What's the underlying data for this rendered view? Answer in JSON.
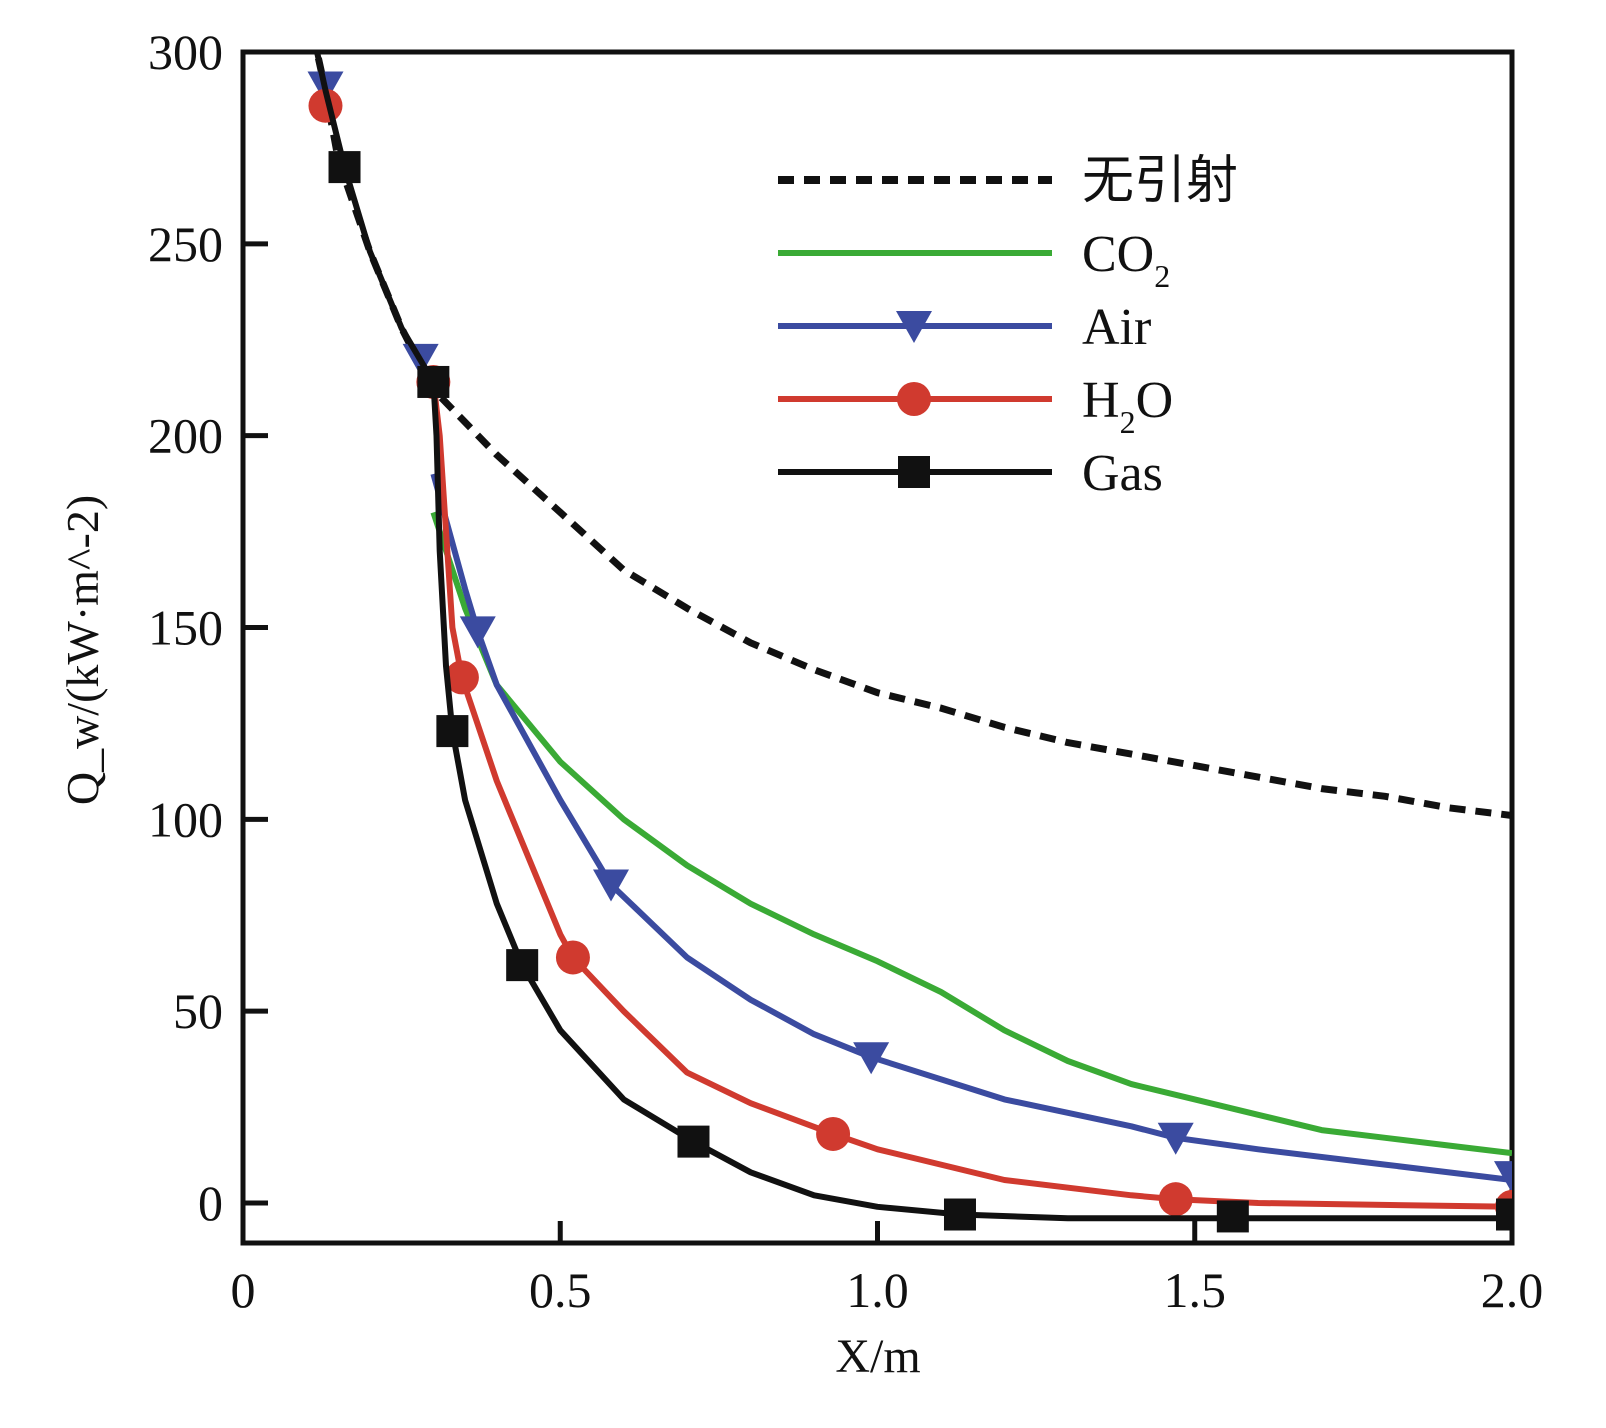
{
  "chart_data": {
    "type": "line",
    "title": "",
    "xlabel": "X/m",
    "ylabel": "Q_w/(kW·m^-2)",
    "ylabel_parts": {
      "main": "Q",
      "sub": "w",
      "unit": "/(kW·m",
      "sup": "−2",
      "close": ")"
    },
    "xlabel_parts": {
      "var": "X",
      "unit": "/m"
    },
    "xlim": [
      0,
      2.0
    ],
    "ylim": [
      -10,
      300
    ],
    "xticks": [
      0,
      0.5,
      1.0,
      1.5,
      2.0
    ],
    "xtick_labels": [
      "0",
      "0.5",
      "1.0",
      "1.5",
      "2.0"
    ],
    "yticks": [
      0,
      50,
      100,
      150,
      200,
      250,
      300
    ],
    "ytick_labels": [
      "0",
      "50",
      "100",
      "150",
      "200",
      "250",
      "300"
    ],
    "grid": false,
    "legend_position": "top-right",
    "series": [
      {
        "name": "无引射",
        "color": "#111111",
        "style": "dashed",
        "marker": "none",
        "x": [
          0.11,
          0.13,
          0.15,
          0.2,
          0.25,
          0.29,
          0.3,
          0.4,
          0.5,
          0.6,
          0.7,
          0.8,
          0.9,
          1.0,
          1.1,
          1.2,
          1.3,
          1.4,
          1.5,
          1.6,
          1.7,
          1.8,
          1.9,
          2.0
        ],
        "y": [
          305,
          290,
          272,
          248,
          228,
          215,
          212,
          195,
          180,
          165,
          155,
          146,
          139,
          133,
          129,
          124,
          120,
          117,
          114,
          111,
          108,
          106,
          103,
          101
        ],
        "markers_x": [],
        "markers_y": []
      },
      {
        "name": "CO2",
        "label_main": "CO",
        "label_sub": "2",
        "color": "#3aaa35",
        "style": "solid",
        "marker": "none",
        "x": [
          0.3,
          0.35,
          0.4,
          0.5,
          0.6,
          0.7,
          0.8,
          0.9,
          1.0,
          1.1,
          1.2,
          1.3,
          1.4,
          1.5,
          1.6,
          1.7,
          1.8,
          1.9,
          2.0
        ],
        "y": [
          180,
          155,
          135,
          115,
          100,
          88,
          78,
          70,
          63,
          55,
          45,
          37,
          31,
          27,
          23,
          19,
          17,
          15,
          13
        ],
        "markers_x": [],
        "markers_y": []
      },
      {
        "name": "Air",
        "label_main": "Air",
        "label_sub": "",
        "color": "#3b4ba0",
        "style": "solid",
        "marker": "triangle-down",
        "x": [
          0.3,
          0.35,
          0.37,
          0.4,
          0.5,
          0.58,
          0.7,
          0.8,
          0.9,
          0.99,
          1.2,
          1.4,
          1.47,
          1.6,
          1.8,
          2.0
        ],
        "y": [
          190,
          160,
          149,
          135,
          105,
          83,
          64,
          53,
          44,
          38,
          27,
          20,
          17,
          14,
          10,
          6
        ],
        "markers_x": [
          0.13,
          0.28,
          0.37,
          0.58,
          0.99,
          1.47,
          2.0
        ],
        "markers_y": [
          291,
          220,
          149,
          83,
          38,
          17,
          7
        ]
      },
      {
        "name": "H2O",
        "label_main": "H",
        "label_sub": "2",
        "label_tail": "O",
        "color": "#d03a2f",
        "style": "solid",
        "marker": "circle",
        "x": [
          0.3,
          0.31,
          0.33,
          0.345,
          0.4,
          0.5,
          0.52,
          0.6,
          0.7,
          0.8,
          0.93,
          1.0,
          1.2,
          1.4,
          1.47,
          1.6,
          2.0
        ],
        "y": [
          214,
          200,
          150,
          137,
          110,
          70,
          64,
          50,
          34,
          26,
          18,
          14,
          6,
          2,
          1,
          0,
          -1
        ],
        "markers_x": [
          0.13,
          0.3,
          0.345,
          0.52,
          0.93,
          1.47,
          2.0
        ],
        "markers_y": [
          286,
          214,
          137,
          64,
          18,
          1,
          -1
        ]
      },
      {
        "name": "Gas",
        "label_main": "Gas",
        "label_sub": "",
        "color": "#111111",
        "style": "solid",
        "marker": "square",
        "x": [
          0.11,
          0.13,
          0.16,
          0.2,
          0.25,
          0.3,
          0.305,
          0.31,
          0.32,
          0.33,
          0.35,
          0.4,
          0.44,
          0.5,
          0.6,
          0.71,
          0.8,
          0.9,
          1.0,
          1.13,
          1.3,
          1.56,
          2.0
        ],
        "y": [
          305,
          290,
          270,
          248,
          228,
          214,
          200,
          170,
          140,
          123,
          105,
          78,
          62,
          45,
          27,
          16,
          8,
          2,
          -1,
          -3,
          -4,
          -4,
          -4
        ],
        "markers_x": [
          0.16,
          0.3,
          0.33,
          0.44,
          0.71,
          1.13,
          1.56,
          2.0
        ],
        "markers_y": [
          270,
          214,
          123,
          62,
          16,
          -3,
          -3.5,
          -3
        ]
      }
    ]
  }
}
